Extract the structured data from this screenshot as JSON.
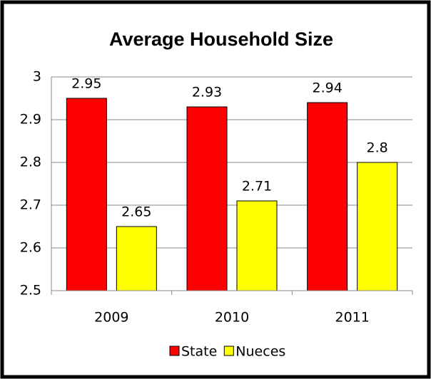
{
  "chart_data": {
    "type": "bar",
    "title": "Average Household Size",
    "categories": [
      "2009",
      "2010",
      "2011"
    ],
    "series": [
      {
        "name": "State",
        "color": "#ff0000",
        "values": [
          2.95,
          2.93,
          2.94
        ]
      },
      {
        "name": "Nueces",
        "color": "#ffff00",
        "values": [
          2.65,
          2.71,
          2.8
        ]
      }
    ],
    "ylim": [
      2.5,
      3
    ],
    "yticks": [
      2.5,
      2.6,
      2.7,
      2.8,
      2.9,
      3
    ],
    "grid": true,
    "legend": "bottom"
  }
}
